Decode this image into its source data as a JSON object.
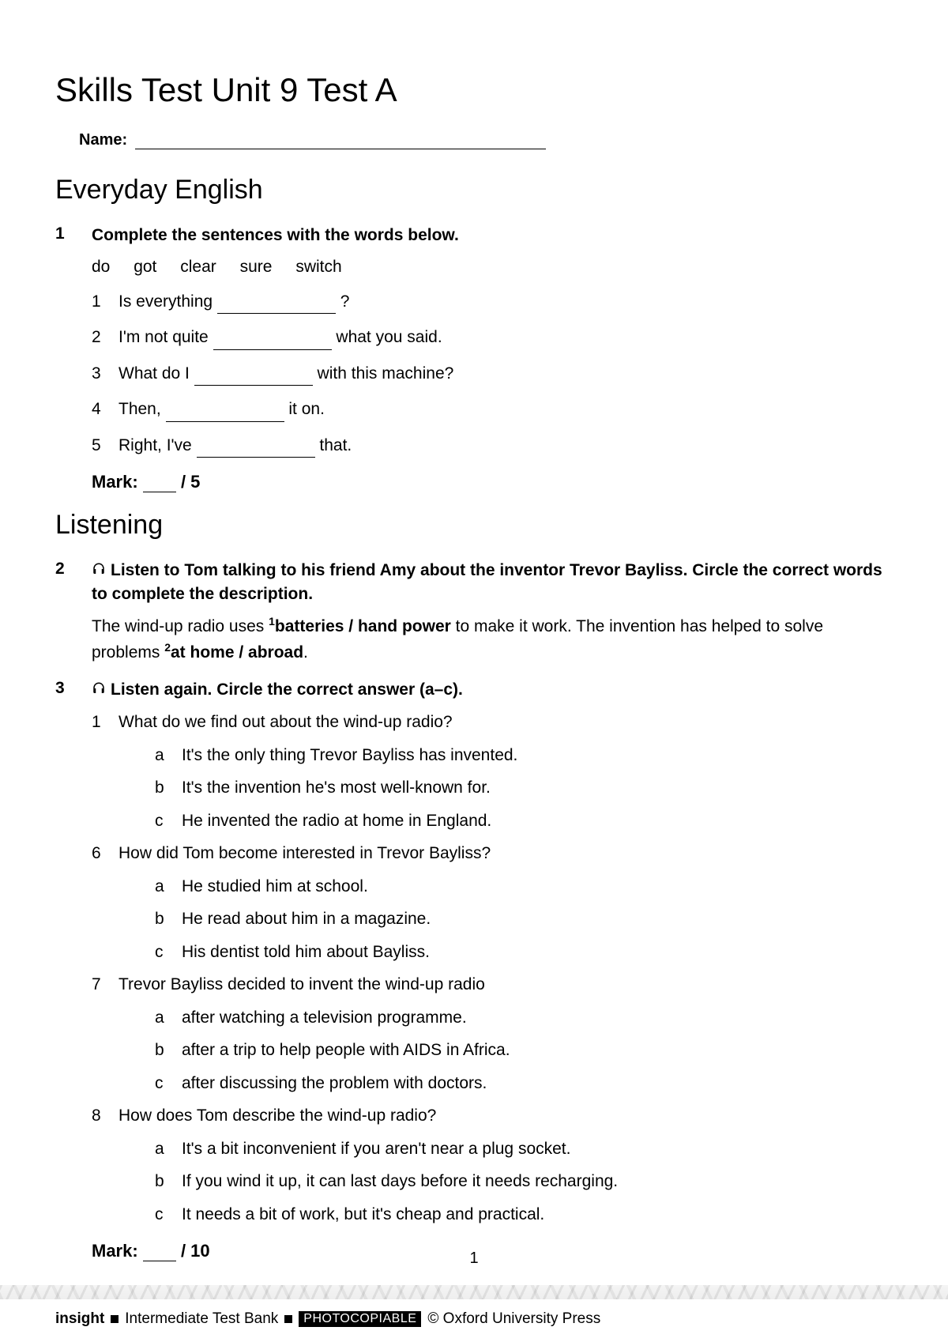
{
  "title": "Skills Test Unit 9 Test A",
  "name_label": "Name:",
  "section1": {
    "heading": "Everyday English",
    "ex1": {
      "num": "1",
      "instruction": "Complete the sentences with the words below.",
      "words": [
        "do",
        "got",
        "clear",
        "sure",
        "switch"
      ],
      "items": [
        {
          "n": "1",
          "pre": "Is everything ",
          "post": " ?"
        },
        {
          "n": "2",
          "pre": "I'm not quite ",
          "post": " what you said."
        },
        {
          "n": "3",
          "pre": "What do I ",
          "post": " with this machine?"
        },
        {
          "n": "4",
          "pre": "Then, ",
          "post": " it on."
        },
        {
          "n": "5",
          "pre": "Right, I've ",
          "post": " that."
        }
      ],
      "mark_label": "Mark:",
      "mark_total": "/ 5"
    }
  },
  "section2": {
    "heading": "Listening",
    "ex2": {
      "num": "2",
      "instruction": "Listen to Tom talking to his friend Amy about the inventor Trevor Bayliss. Circle the correct words to complete the description.",
      "body_pre1": "The wind-up radio uses ",
      "body_bold1": "batteries / hand power",
      "body_mid": " to make it work. The invention has helped to solve problems ",
      "body_bold2": "at home / abroad",
      "body_end": "."
    },
    "ex3": {
      "num": "3",
      "instruction": "Listen again. Circle the correct answer (a–c).",
      "questions": [
        {
          "n": "1",
          "q": "What do we find out about the wind-up radio?",
          "opts": [
            {
              "l": "a",
              "t": "It's the only thing Trevor Bayliss has invented."
            },
            {
              "l": "b",
              "t": "It's the invention he's most well-known for."
            },
            {
              "l": "c",
              "t": "He invented the radio at home in England."
            }
          ]
        },
        {
          "n": "6",
          "q": "How did Tom become interested in Trevor Bayliss?",
          "opts": [
            {
              "l": "a",
              "t": "He studied him at school."
            },
            {
              "l": "b",
              "t": "He read about him in a magazine."
            },
            {
              "l": "c",
              "t": "His dentist told him about Bayliss."
            }
          ]
        },
        {
          "n": "7",
          "q": "Trevor Bayliss decided to invent the wind-up radio",
          "opts": [
            {
              "l": "a",
              "t": "after watching a television programme."
            },
            {
              "l": "b",
              "t": "after a trip to help people with AIDS in Africa."
            },
            {
              "l": "c",
              "t": "after discussing the problem with doctors."
            }
          ]
        },
        {
          "n": "8",
          "q": "How does Tom describe the wind-up radio?",
          "opts": [
            {
              "l": "a",
              "t": "It's a bit inconvenient if you aren't near a plug socket."
            },
            {
              "l": "b",
              "t": "If you wind it up, it can last days before it needs recharging."
            },
            {
              "l": "c",
              "t": "It needs a bit of work, but it's cheap and practical."
            }
          ]
        }
      ],
      "mark_label": "Mark:",
      "mark_total": "/ 10"
    }
  },
  "page_number": "1",
  "footer": {
    "brand": "insight",
    "mid": "Intermediate Test Bank",
    "badge": "PHOTOCOPIABLE",
    "copyright": "© Oxford University Press"
  }
}
